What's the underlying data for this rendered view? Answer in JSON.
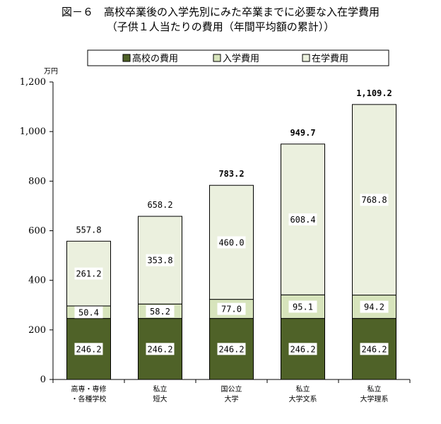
{
  "title_line1": "図－６　高校卒業後の入学先別にみた卒業までに必要な入在学費用",
  "title_line2": "（子供１人当たりの費用（年間平均額の累計））",
  "chart_data": {
    "type": "bar",
    "stacked": true,
    "unit": "万円",
    "ylim": [
      0,
      1200
    ],
    "yticks": [
      0,
      200,
      400,
      600,
      800,
      1000,
      1200
    ],
    "ytick_labels": [
      "0",
      "200",
      "400",
      "600",
      "800",
      "1,000",
      "1,200"
    ],
    "categories": [
      [
        "高専・専修",
        "・各種学校"
      ],
      [
        "私立",
        "短大"
      ],
      [
        "国公立",
        "大学"
      ],
      [
        "私立",
        "大学文系"
      ],
      [
        "私立",
        "大学理系"
      ]
    ],
    "series": [
      {
        "name": "高校の費用",
        "color": "#4f6228",
        "values": [
          246.2,
          246.2,
          246.2,
          246.2,
          246.2
        ],
        "labels": [
          "246.2",
          "246.2",
          "246.2",
          "246.2",
          "246.2"
        ]
      },
      {
        "name": "入学費用",
        "color": "#d7e4bc",
        "values": [
          50.4,
          58.2,
          77.0,
          95.1,
          94.2
        ],
        "labels": [
          "50.4",
          "58.2",
          "77.0",
          "95.1",
          "94.2"
        ]
      },
      {
        "name": "在学費用",
        "color": "#ebf0de",
        "values": [
          261.2,
          353.8,
          460.0,
          608.4,
          768.8
        ],
        "labels": [
          "261.2",
          "353.8",
          "460.0",
          "608.4",
          "768.8"
        ]
      }
    ],
    "totals": [
      557.8,
      658.2,
      783.2,
      949.7,
      1109.2
    ],
    "total_labels": [
      "557.8",
      "658.2",
      "783.2",
      "949.7",
      "1,109.2"
    ],
    "total_bold": [
      false,
      false,
      true,
      true,
      true
    ],
    "legend_position": "top",
    "grid": false
  }
}
